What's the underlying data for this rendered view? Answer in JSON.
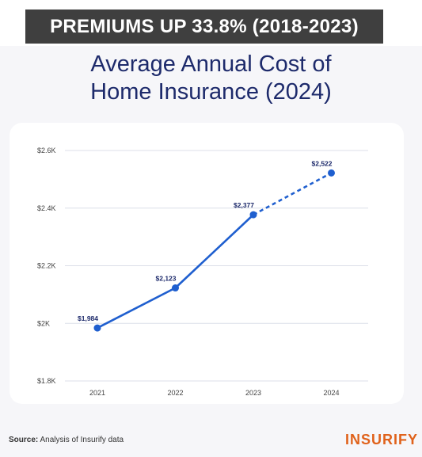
{
  "banner": {
    "text": "PREMIUMS UP 33.8% (2018-2023)"
  },
  "chart_data": {
    "type": "line",
    "title": "Average Annual Cost of Home Insurance (2024)",
    "title_lines": [
      "Average Annual Cost of",
      "Home Insurance (2024)"
    ],
    "categories": [
      "2021",
      "2022",
      "2023",
      "2024"
    ],
    "series": [
      {
        "values": [
          1984,
          2123,
          2377,
          2522
        ],
        "labels": [
          "$1,984",
          "$2,123",
          "$2,377",
          "$2,522"
        ],
        "projected_from_index": 2
      }
    ],
    "yticks": [
      {
        "value": 1800,
        "label": "$1.8K"
      },
      {
        "value": 2000,
        "label": "$2K"
      },
      {
        "value": 2200,
        "label": "$2.2K"
      },
      {
        "value": 2400,
        "label": "$2.4K"
      },
      {
        "value": 2600,
        "label": "$2.6K"
      }
    ],
    "ylim": [
      1800,
      2600
    ],
    "grid": true,
    "xlabel": "",
    "ylabel": ""
  },
  "source": {
    "label": "Source:",
    "text": "Analysis of Insurify data"
  },
  "logo": {
    "text": "INSURIFY"
  },
  "colors": {
    "line": "#1f5fcf",
    "title": "#1d2a6b",
    "grid": "#dcdfe8",
    "banner_bg": "#3f3f3f",
    "logo": "#e0621b"
  }
}
